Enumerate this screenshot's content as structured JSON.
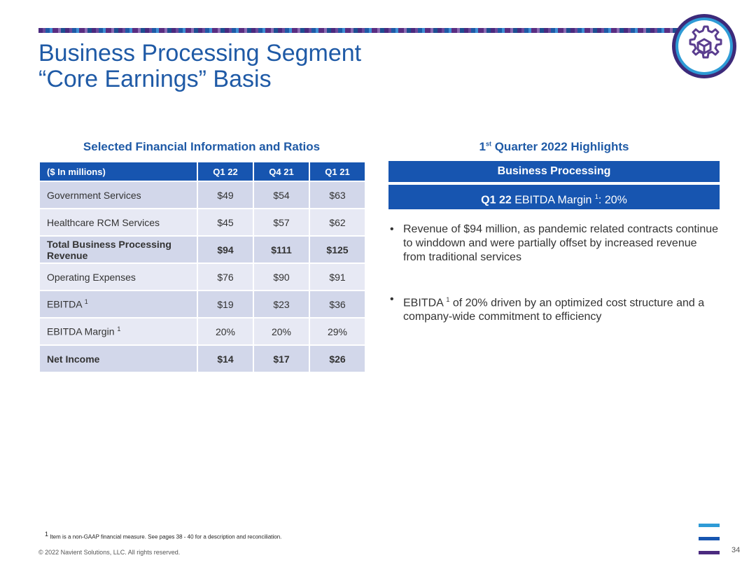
{
  "title_line1": "Business Processing Segment",
  "title_line2": "“Core Earnings” Basis",
  "table": {
    "heading": "Selected Financial Information and Ratios",
    "columns": [
      "($ In millions)",
      "Q1 22",
      "Q4 21",
      "Q1 21"
    ],
    "rows": [
      {
        "label": "Government Services",
        "sup": "",
        "values": [
          "$49",
          "$54",
          "$63"
        ],
        "bold": false
      },
      {
        "label": "Healthcare RCM Services",
        "sup": "",
        "values": [
          "$45",
          "$57",
          "$62"
        ],
        "bold": false
      },
      {
        "label": "Total Business Processing Revenue",
        "sup": "",
        "values": [
          "$94",
          "$111",
          "$125"
        ],
        "bold": true
      },
      {
        "label": "Operating Expenses",
        "sup": "",
        "values": [
          "$76",
          "$90",
          "$91"
        ],
        "bold": false
      },
      {
        "label": "EBITDA",
        "sup": "1",
        "values": [
          "$19",
          "$23",
          "$36"
        ],
        "bold": false
      },
      {
        "label": "EBITDA Margin",
        "sup": "1",
        "values": [
          "20%",
          "20%",
          "29%"
        ],
        "bold": false
      },
      {
        "label": "Net Income",
        "sup": "",
        "values": [
          "$14",
          "$17",
          "$26"
        ],
        "bold": true
      }
    ]
  },
  "highlights": {
    "heading_prefix": "1",
    "heading_sup": "st",
    "heading_rest": " Quarter 2022 Highlights",
    "bar1": "Business Processing",
    "bar2_bold": "Q1 22",
    "bar2_text": " EBITDA Margin ",
    "bar2_sup": "1",
    "bar2_tail": ": 20%",
    "bullet1": "Revenue of $94 million, as pandemic related contracts continue to winddown and were partially offset by increased revenue from traditional services",
    "bullet2_pre": "EBITDA ",
    "bullet2_sup": "1",
    "bullet2_post": " of 20% driven by an optimized cost structure and a company-wide commitment to efficiency"
  },
  "footnote_sup": "1",
  "footnote": " Item is a non-GAAP financial measure.  See pages 38 - 40  for a description and reconciliation.",
  "copyright": "© 2022 Navient Solutions, LLC. All rights reserved.",
  "page_number": "34",
  "colors": {
    "brand_blue": "#1755b0",
    "title_blue": "#1f5aa6",
    "purple": "#4b2a7f",
    "light_blue": "#2e9bd6"
  },
  "icons": {
    "logo": "gear-cube-icon"
  }
}
